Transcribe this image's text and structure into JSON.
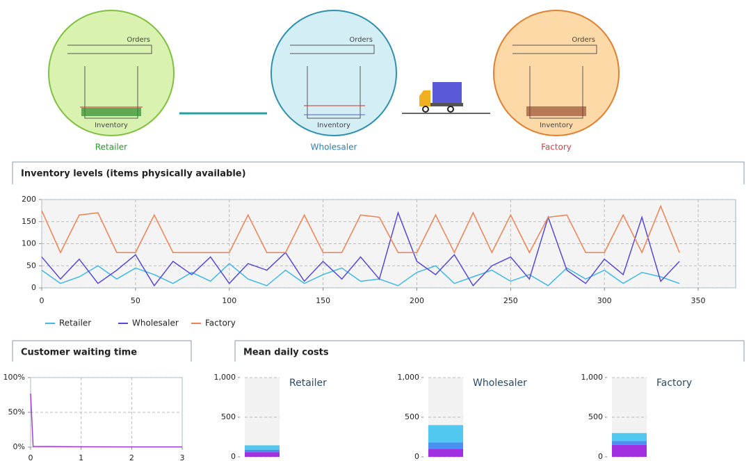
{
  "diagram": {
    "nodes": [
      {
        "label": "Retailer",
        "orders": "Orders",
        "inventory": "Inventory"
      },
      {
        "label": "Wholesaler",
        "orders": "Orders",
        "inventory": "Inventory"
      },
      {
        "label": "Factory",
        "orders": "Orders",
        "inventory": "Inventory"
      }
    ]
  },
  "chart_data": [
    {
      "type": "line",
      "title": "Inventory levels (items physically available)",
      "x": [
        0,
        10,
        20,
        30,
        40,
        50,
        60,
        70,
        80,
        90,
        100,
        110,
        120,
        130,
        140,
        150,
        160,
        170,
        180,
        190,
        200,
        210,
        220,
        230,
        240,
        250,
        260,
        270,
        280,
        290,
        300,
        310,
        320,
        330,
        340
      ],
      "series": [
        {
          "name": "Retailer",
          "color": "#3fb8e8",
          "values": [
            40,
            10,
            25,
            50,
            20,
            45,
            30,
            10,
            35,
            15,
            55,
            20,
            5,
            40,
            10,
            30,
            45,
            15,
            20,
            5,
            35,
            50,
            10,
            25,
            40,
            15,
            30,
            5,
            45,
            20,
            40,
            10,
            35,
            25,
            10
          ]
        },
        {
          "name": "Wholesaler",
          "color": "#5548d8",
          "values": [
            70,
            20,
            65,
            10,
            40,
            75,
            5,
            60,
            30,
            70,
            10,
            55,
            40,
            80,
            15,
            60,
            20,
            70,
            20,
            170,
            60,
            30,
            75,
            5,
            50,
            70,
            20,
            160,
            40,
            10,
            65,
            30,
            160,
            15,
            60
          ]
        },
        {
          "name": "Factory",
          "color": "#f08050",
          "values": [
            175,
            80,
            165,
            170,
            80,
            80,
            165,
            80,
            80,
            80,
            80,
            165,
            80,
            80,
            165,
            80,
            80,
            165,
            160,
            80,
            80,
            165,
            80,
            170,
            80,
            165,
            80,
            160,
            165,
            80,
            80,
            165,
            80,
            185,
            80
          ]
        }
      ],
      "xlim": [
        0,
        370
      ],
      "xticks": [
        0,
        50,
        100,
        150,
        200,
        250,
        300,
        350
      ],
      "ylim": [
        0,
        200
      ],
      "yticks": [
        0,
        50,
        100,
        150,
        200
      ],
      "grid": true,
      "legend": "bottom"
    },
    {
      "type": "line",
      "title": "Customer waiting time",
      "x": [
        0,
        0.05,
        1,
        2,
        3
      ],
      "series": [
        {
          "color": "#a040d8",
          "values": [
            77,
            1,
            0.5,
            0.3,
            0.2
          ]
        }
      ],
      "xlim": [
        0,
        3
      ],
      "xticks": [
        0,
        1,
        2,
        3
      ],
      "ylim": [
        0,
        100
      ],
      "yticks": [
        {
          "value": 0,
          "label": "0%"
        },
        {
          "value": 50,
          "label": "50%"
        },
        {
          "value": 100,
          "label": "100%"
        }
      ],
      "grid": true
    },
    {
      "type": "bar",
      "title": "Mean daily costs",
      "stacked": true,
      "categories": [
        "Retailer",
        "Wholesaler",
        "Factory"
      ],
      "series": [
        {
          "color": "#a030e0",
          "values": [
            60,
            100,
            150
          ]
        },
        {
          "color": "#4a90f0",
          "values": [
            30,
            80,
            50
          ]
        },
        {
          "color": "#50c8f0",
          "values": [
            55,
            220,
            100
          ]
        }
      ],
      "ylim": [
        0,
        1000
      ],
      "yticks": [
        0,
        500,
        {
          "value": 1000,
          "label": "1,000"
        }
      ],
      "grid": true
    }
  ]
}
